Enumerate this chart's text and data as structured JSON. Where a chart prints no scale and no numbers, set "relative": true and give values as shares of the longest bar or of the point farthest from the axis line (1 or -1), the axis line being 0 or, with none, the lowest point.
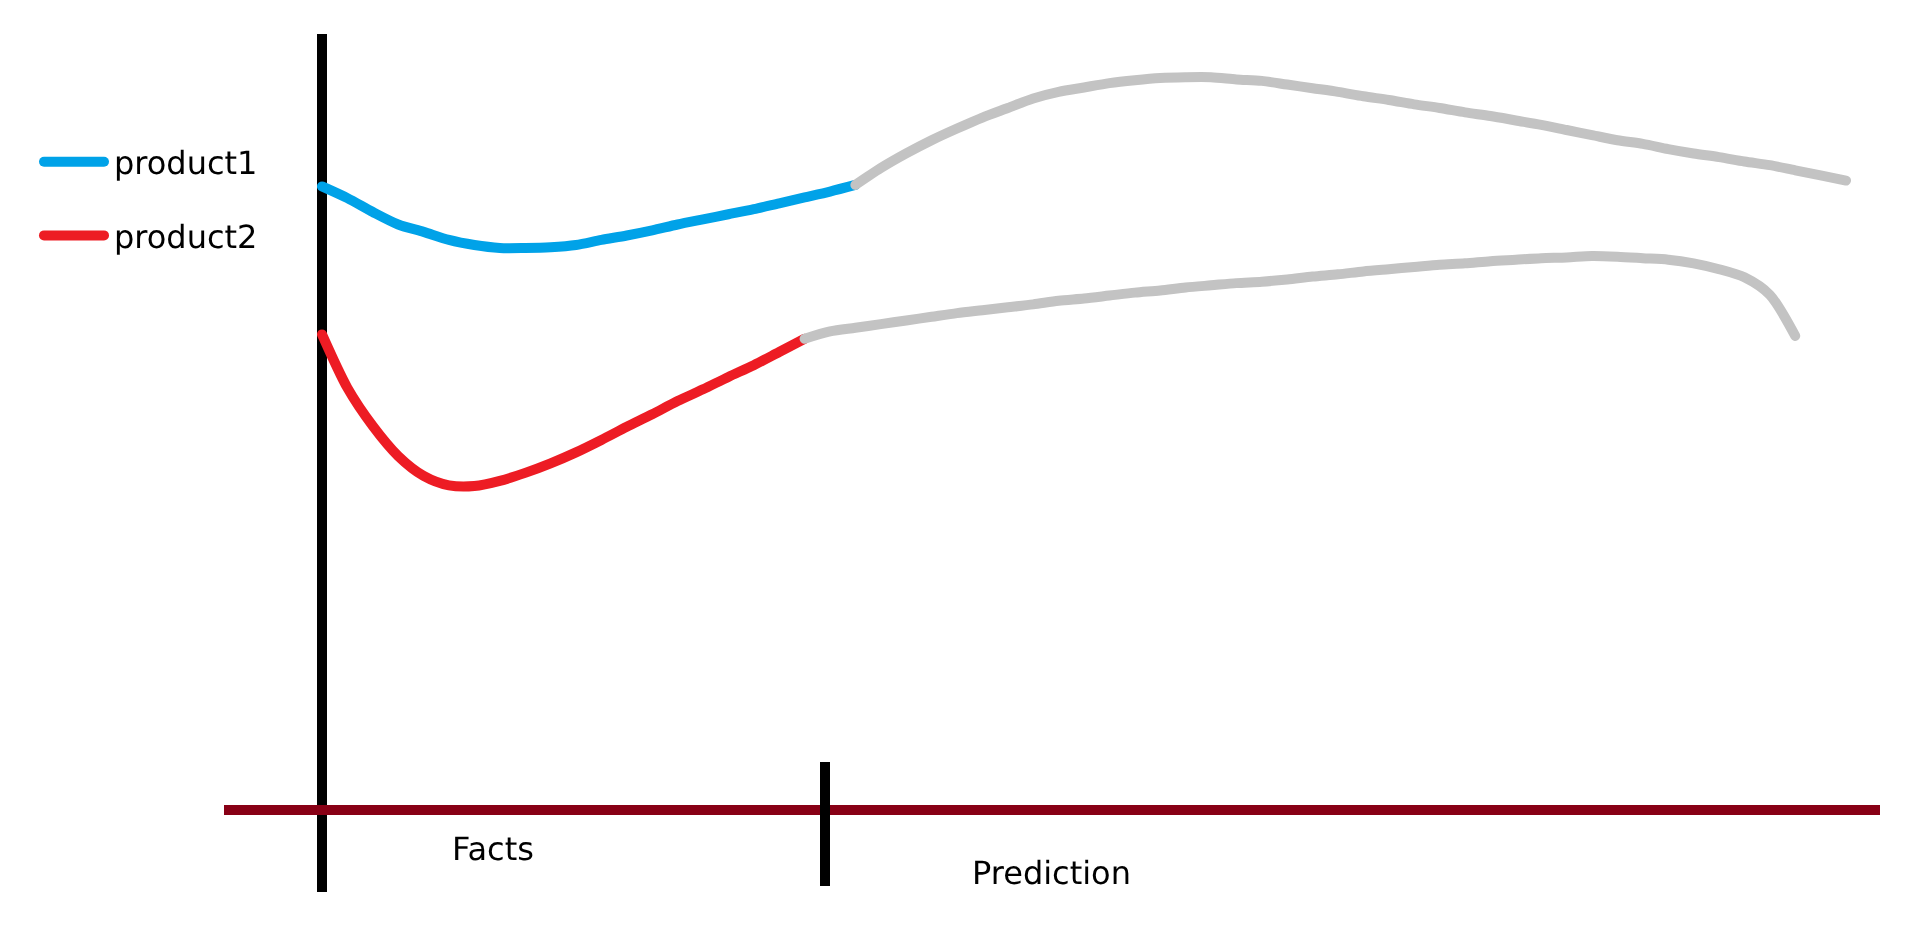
{
  "chart_data": {
    "type": "line",
    "relative": true,
    "categories": [
      null,
      null,
      null,
      null,
      null,
      null,
      null,
      null,
      null,
      null,
      null,
      null,
      null,
      null,
      null,
      null,
      null,
      null,
      null,
      null,
      null,
      null,
      null,
      null,
      null,
      null,
      null,
      null,
      null,
      null,
      null,
      null,
      null,
      null,
      null,
      null,
      null,
      null,
      null,
      null,
      null,
      null,
      null,
      null,
      null,
      null,
      null,
      null,
      null,
      null,
      null,
      null,
      null,
      null,
      null,
      null,
      null,
      null,
      null,
      null,
      null
    ],
    "series": [
      {
        "name": "product1",
        "color": "#00a2e8",
        "values": [
          0.851,
          0.835,
          0.816,
          0.799,
          0.789,
          0.778,
          0.771,
          0.767,
          0.767,
          0.768,
          0.771,
          0.778,
          0.784,
          0.791,
          0.799,
          0.806,
          0.813,
          0.82,
          0.828,
          0.836,
          0.844,
          0.853,
          null,
          null,
          null,
          null,
          null,
          null,
          null,
          null,
          null,
          null,
          null,
          null,
          null,
          null,
          null,
          null,
          null,
          null,
          null,
          null,
          null,
          null,
          null,
          null,
          null,
          null,
          null,
          null,
          null,
          null,
          null,
          null,
          null,
          null,
          null,
          null,
          null,
          null,
          null
        ]
      },
      {
        "color": "#c3c3c3",
        "values": [
          null,
          null,
          null,
          null,
          null,
          null,
          null,
          null,
          null,
          null,
          null,
          null,
          null,
          null,
          null,
          null,
          null,
          null,
          null,
          null,
          null,
          0.853,
          0.876,
          0.896,
          0.914,
          0.93,
          0.945,
          0.958,
          0.971,
          0.98,
          0.986,
          0.992,
          0.996,
          0.999,
          1,
          1,
          0.997,
          0.995,
          0.99,
          0.985,
          0.98,
          0.974,
          0.969,
          0.963,
          0.958,
          0.952,
          0.947,
          0.941,
          0.935,
          0.928,
          0.921,
          0.914,
          0.909,
          0.902,
          0.896,
          0.891,
          0.885,
          0.88,
          0.873,
          0.866,
          0.859
        ]
      },
      {
        "name": "product2",
        "color": "#ed1c24",
        "values": [
          0.649,
          0.576,
          0.524,
          0.483,
          0.456,
          0.443,
          0.442,
          0.449,
          0.46,
          0.473,
          0.488,
          0.505,
          0.523,
          0.54,
          0.558,
          0.574,
          0.591,
          0.607,
          0.625,
          0.643,
          null,
          null,
          null,
          null,
          null,
          null,
          null,
          null,
          null,
          null,
          null,
          null,
          null,
          null,
          null,
          null,
          null,
          null,
          null,
          null,
          null,
          null,
          null,
          null,
          null,
          null,
          null,
          null,
          null,
          null,
          null,
          null,
          null,
          null,
          null,
          null,
          null,
          null,
          null,
          null,
          null
        ]
      },
      {
        "color": "#c3c3c3",
        "values": [
          null,
          null,
          null,
          null,
          null,
          null,
          null,
          null,
          null,
          null,
          null,
          null,
          null,
          null,
          null,
          null,
          null,
          null,
          null,
          0.643,
          0.653,
          0.658,
          0.663,
          0.668,
          0.673,
          0.678,
          0.682,
          0.686,
          0.69,
          0.695,
          0.698,
          0.702,
          0.706,
          0.709,
          0.713,
          0.716,
          0.719,
          0.721,
          0.724,
          0.728,
          0.731,
          0.735,
          0.738,
          0.741,
          0.744,
          0.746,
          0.749,
          0.751,
          0.753,
          0.754,
          0.756,
          0.755,
          0.753,
          0.751,
          0.746,
          0.738,
          0.727,
          0.703,
          0.647,
          null,
          null
        ]
      }
    ],
    "annotations": [
      "Facts",
      "Prediction"
    ],
    "legend": "top left"
  }
}
